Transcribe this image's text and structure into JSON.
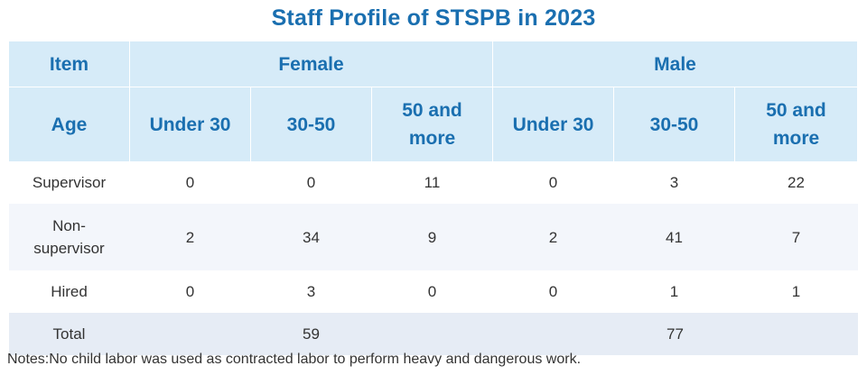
{
  "title": "Staff Profile of STSPB in 2023",
  "headers": {
    "item": "Item",
    "female": "Female",
    "male": "Male",
    "age": "Age",
    "age_groups": [
      "Under 30",
      "30-50",
      "50 and more"
    ]
  },
  "rows": [
    {
      "label": "Supervisor",
      "female": [
        "0",
        "0",
        "11"
      ],
      "male": [
        "0",
        "3",
        "22"
      ]
    },
    {
      "label": "Non-supervisor",
      "female": [
        "2",
        "34",
        "9"
      ],
      "male": [
        "2",
        "41",
        "7"
      ]
    },
    {
      "label": "Hired",
      "female": [
        "0",
        "3",
        "0"
      ],
      "male": [
        "0",
        "1",
        "1"
      ]
    }
  ],
  "total": {
    "label": "Total",
    "female": "59",
    "male": "77"
  },
  "note": "Notes:No child labor was used as contracted labor to perform heavy and dangerous work.",
  "colors": {
    "accent": "#1a6fb0",
    "header_bg": "#d6ebf8",
    "total_bg": "#e6ecf5",
    "stripe_bg": "#f3f6fb"
  }
}
